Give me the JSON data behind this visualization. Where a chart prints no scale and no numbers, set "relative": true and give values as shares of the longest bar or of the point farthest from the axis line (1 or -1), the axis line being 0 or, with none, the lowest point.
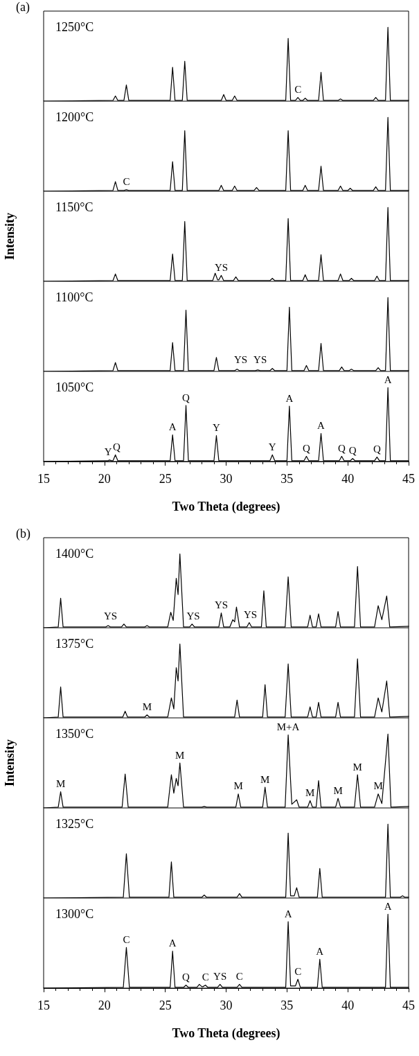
{
  "chart_data": [
    {
      "type": "line",
      "title": "(a)",
      "relative": true,
      "xlim": [
        15,
        45
      ],
      "tick_labels": false,
      "annotations": [
        "1250°C",
        {
          "text": "C",
          "x": 35.9,
          "y": 0.05
        }
      ],
      "x": [
        15,
        20.7,
        20.9,
        21.1,
        21.6,
        21.8,
        22.0,
        25.4,
        25.6,
        25.8,
        26.4,
        26.6,
        26.8,
        29.6,
        29.8,
        30.0,
        30.5,
        30.7,
        30.9,
        34.9,
        35.1,
        35.3,
        35.7,
        35.9,
        36.1,
        36.3,
        36.5,
        36.7,
        37.6,
        37.8,
        38.0,
        39.2,
        39.4,
        39.6,
        42.1,
        42.3,
        42.5,
        43.1,
        43.3,
        43.5,
        45
      ],
      "series": [
        {
          "color": "#000000",
          "values": [
            0,
            0.01,
            0.07,
            0.01,
            0.01,
            0.22,
            0.01,
            0.01,
            0.46,
            0.01,
            0.01,
            0.54,
            0.01,
            0.01,
            0.09,
            0.01,
            0.01,
            0.07,
            0.01,
            0.01,
            0.85,
            0.01,
            0.01,
            0.05,
            0.01,
            0.01,
            0.04,
            0.01,
            0.01,
            0.39,
            0.01,
            0.01,
            0.03,
            0.01,
            0.01,
            0.05,
            0.01,
            0.01,
            1,
            0.01,
            0.01
          ]
        }
      ]
    },
    {
      "type": "line",
      "relative": true,
      "xlim": [
        15,
        45
      ],
      "tick_labels": false,
      "annotations": [
        "1200°C",
        {
          "text": "C",
          "x": 21.8,
          "y": 0.02
        }
      ],
      "x": [
        15,
        20.7,
        20.9,
        21.1,
        21.6,
        21.8,
        22.0,
        25.4,
        25.6,
        25.8,
        26.4,
        26.6,
        26.8,
        29.4,
        29.6,
        29.8,
        30.5,
        30.7,
        30.9,
        32.3,
        32.5,
        32.7,
        34.9,
        35.1,
        35.3,
        36.3,
        36.5,
        36.7,
        37.6,
        37.8,
        38.0,
        39.2,
        39.4,
        39.6,
        40.0,
        40.2,
        40.4,
        42.1,
        42.3,
        42.5,
        43.1,
        43.3,
        43.5,
        45
      ],
      "series": [
        {
          "color": "#000000",
          "values": [
            0,
            0.01,
            0.13,
            0.01,
            0.01,
            0.02,
            0.01,
            0.01,
            0.4,
            0.01,
            0.01,
            0.82,
            0.01,
            0.01,
            0.08,
            0.01,
            0.01,
            0.07,
            0.01,
            0.01,
            0.05,
            0.01,
            0.01,
            0.82,
            0.01,
            0.01,
            0.08,
            0.01,
            0.01,
            0.34,
            0.01,
            0.01,
            0.07,
            0.01,
            0.01,
            0.04,
            0.01,
            0.01,
            0.06,
            0.01,
            0.01,
            1,
            0.01,
            0.01
          ]
        }
      ]
    },
    {
      "type": "line",
      "ylabel": "Intensity",
      "relative": true,
      "xlim": [
        15,
        45
      ],
      "tick_labels": false,
      "annotations": [
        "1150°C",
        {
          "text": "YS",
          "x": 29.6,
          "y": 0.08
        }
      ],
      "x": [
        15,
        20.7,
        20.9,
        21.1,
        25.4,
        25.6,
        25.8,
        26.4,
        26.6,
        26.8,
        28.9,
        29.1,
        29.3,
        29.4,
        29.6,
        29.8,
        30.6,
        30.8,
        31.0,
        33.6,
        33.8,
        34.0,
        34.9,
        35.1,
        35.3,
        36.3,
        36.5,
        36.7,
        37.6,
        37.8,
        38.0,
        39.2,
        39.4,
        39.6,
        40.1,
        40.3,
        40.5,
        42.2,
        42.4,
        42.6,
        43.1,
        43.3,
        43.5,
        45
      ],
      "series": [
        {
          "color": "#000000",
          "values": [
            0,
            0.01,
            0.1,
            0.01,
            0.01,
            0.37,
            0.01,
            0.01,
            0.81,
            0.01,
            0.01,
            0.11,
            0.02,
            0.02,
            0.08,
            0.01,
            0.01,
            0.06,
            0.01,
            0.01,
            0.04,
            0.01,
            0.01,
            0.85,
            0.01,
            0.01,
            0.09,
            0.01,
            0.01,
            0.36,
            0.01,
            0.01,
            0.1,
            0.01,
            0.01,
            0.04,
            0.01,
            0.01,
            0.07,
            0.01,
            0.01,
            1,
            0.01,
            0.01
          ]
        }
      ]
    },
    {
      "type": "line",
      "relative": true,
      "xlim": [
        15,
        45
      ],
      "tick_labels": false,
      "annotations": [
        "1100°C",
        {
          "text": "YS",
          "x": 31.2,
          "y": 0.05
        },
        {
          "text": "YS",
          "x": 32.8,
          "y": 0.05
        }
      ],
      "x": [
        15,
        20.7,
        20.9,
        21.1,
        25.4,
        25.6,
        25.8,
        26.5,
        26.7,
        26.9,
        29.0,
        29.2,
        29.4,
        30.7,
        30.9,
        31.1,
        32.4,
        32.6,
        32.8,
        33.6,
        33.8,
        34.0,
        35.0,
        35.2,
        35.4,
        36.4,
        36.6,
        36.8,
        37.6,
        37.8,
        38.0,
        39.3,
        39.5,
        39.7,
        40.1,
        40.3,
        40.5,
        42.3,
        42.5,
        42.7,
        43.1,
        43.3,
        43.5,
        45
      ],
      "series": [
        {
          "color": "#000000",
          "values": [
            0,
            0.01,
            0.12,
            0.01,
            0.01,
            0.39,
            0.01,
            0.01,
            0.83,
            0.01,
            0.01,
            0.19,
            0.01,
            0.01,
            0.03,
            0.01,
            0.01,
            0.02,
            0.01,
            0.01,
            0.04,
            0.01,
            0.01,
            0.87,
            0.01,
            0.01,
            0.08,
            0.01,
            0.01,
            0.38,
            0.01,
            0.01,
            0.06,
            0.01,
            0.01,
            0.03,
            0.01,
            0.01,
            0.05,
            0.01,
            0.01,
            1,
            0.01,
            0.01
          ]
        }
      ]
    },
    {
      "type": "line",
      "xlabel": "Two Theta (degrees)",
      "relative": true,
      "xlim": [
        15,
        45
      ],
      "xticks": [
        15,
        20,
        25,
        30,
        35,
        40,
        45
      ],
      "tick_labels": "x",
      "annotations": [
        "1050°C",
        {
          "text": "Y",
          "x": 20.3,
          "y": 0.02
        },
        {
          "text": "Q",
          "x": 21.0,
          "y": 0.09
        },
        {
          "text": "A",
          "x": 25.6,
          "y": 0.36
        },
        {
          "text": "Q",
          "x": 26.7,
          "y": 0.76
        },
        {
          "text": "Y",
          "x": 29.2,
          "y": 0.35
        },
        {
          "text": "Y",
          "x": 33.8,
          "y": 0.09
        },
        {
          "text": "A",
          "x": 35.2,
          "y": 0.75
        },
        {
          "text": "Q",
          "x": 36.6,
          "y": 0.07
        },
        {
          "text": "A",
          "x": 37.8,
          "y": 0.38
        },
        {
          "text": "Q",
          "x": 39.5,
          "y": 0.07
        },
        {
          "text": "Q",
          "x": 40.4,
          "y": 0.04
        },
        {
          "text": "Q",
          "x": 42.4,
          "y": 0.06
        },
        {
          "text": "A",
          "x": 43.3,
          "y": 1
        }
      ],
      "x": [
        15,
        20.3,
        20.4,
        20.6,
        20.7,
        20.9,
        21.1,
        25.4,
        25.6,
        25.8,
        26.5,
        26.7,
        26.9,
        29.0,
        29.2,
        29.4,
        33.6,
        33.8,
        34.0,
        35.0,
        35.2,
        35.4,
        36.4,
        36.6,
        36.8,
        37.6,
        37.8,
        38.0,
        39.3,
        39.5,
        39.7,
        40.2,
        40.4,
        40.6,
        42.2,
        42.4,
        42.6,
        43.1,
        43.3,
        43.5,
        45
      ],
      "series": [
        {
          "color": "#000000",
          "values": [
            0,
            0.01,
            0.02,
            0.01,
            0.01,
            0.09,
            0.01,
            0.01,
            0.36,
            0.01,
            0.01,
            0.76,
            0.01,
            0.01,
            0.35,
            0.01,
            0.01,
            0.09,
            0.01,
            0.01,
            0.75,
            0.01,
            0.01,
            0.07,
            0.01,
            0.01,
            0.38,
            0.01,
            0.01,
            0.07,
            0.01,
            0.01,
            0.04,
            0.01,
            0.01,
            0.06,
            0.01,
            0.01,
            1,
            0.01,
            0.01
          ]
        }
      ]
    },
    {
      "type": "line",
      "title": "(b)",
      "relative": true,
      "xlim": [
        15,
        45
      ],
      "tick_labels": false,
      "annotations": [
        "1400°C",
        {
          "text": "YS",
          "x": 20.5,
          "y": 0.05
        },
        {
          "text": "YS",
          "x": 27.3,
          "y": 0.05
        },
        {
          "text": "YS",
          "x": 29.6,
          "y": 0.2
        },
        {
          "text": "YS",
          "x": 32.0,
          "y": 0.07
        }
      ],
      "x": [
        15,
        16.2,
        16.4,
        16.6,
        20.1,
        20.3,
        20.5,
        21.4,
        21.6,
        21.8,
        23.3,
        23.5,
        23.7,
        25.2,
        25.45,
        25.65,
        25.9,
        26.05,
        26.2,
        26.5,
        27.0,
        27.2,
        27.4,
        29.4,
        29.6,
        29.8,
        30.3,
        30.55,
        30.7,
        30.85,
        31.1,
        31.7,
        31.9,
        32.1,
        32.9,
        33.1,
        33.3,
        34.85,
        35.1,
        35.35,
        36.7,
        36.9,
        37.1,
        37.4,
        37.6,
        37.8,
        39.0,
        39.2,
        39.4,
        40.55,
        40.8,
        41.05,
        42.2,
        42.5,
        42.8,
        43.2,
        43.45,
        45
      ],
      "series": [
        {
          "color": "#000000",
          "values": [
            0,
            0.01,
            0.4,
            0.01,
            0.01,
            0.03,
            0.01,
            0.01,
            0.05,
            0.01,
            0.01,
            0.03,
            0.01,
            0.01,
            0.21,
            0.1,
            0.67,
            0.45,
            1,
            0.01,
            0.01,
            0.05,
            0.01,
            0.01,
            0.2,
            0.01,
            0.01,
            0.11,
            0.08,
            0.28,
            0.01,
            0.01,
            0.07,
            0.01,
            0.01,
            0.5,
            0.01,
            0.01,
            0.69,
            0.01,
            0.01,
            0.17,
            0.01,
            0.01,
            0.19,
            0.01,
            0.01,
            0.22,
            0.01,
            0.01,
            0.83,
            0.01,
            0.01,
            0.3,
            0.11,
            0.43,
            0.01,
            0.02
          ]
        }
      ]
    },
    {
      "type": "line",
      "relative": true,
      "xlim": [
        15,
        45
      ],
      "tick_labels": false,
      "annotations": [
        "1375°C",
        {
          "text": "M",
          "x": 23.5,
          "y": 0.04
        }
      ],
      "x": [
        15,
        16.2,
        16.4,
        16.6,
        21.5,
        21.7,
        21.9,
        23.3,
        23.5,
        23.7,
        25.2,
        25.5,
        25.7,
        25.9,
        26.05,
        26.2,
        26.5,
        30.7,
        30.9,
        31.1,
        33.0,
        33.2,
        33.4,
        34.85,
        35.1,
        35.35,
        36.7,
        36.9,
        37.1,
        37.4,
        37.6,
        37.8,
        39.0,
        39.2,
        39.4,
        40.55,
        40.8,
        41.05,
        42.2,
        42.5,
        42.8,
        43.2,
        43.45,
        45
      ],
      "series": [
        {
          "color": "#000000",
          "values": [
            0,
            0.01,
            0.42,
            0.01,
            0.01,
            0.09,
            0.01,
            0.01,
            0.04,
            0.01,
            0.01,
            0.27,
            0.12,
            0.68,
            0.5,
            1,
            0.01,
            0.01,
            0.24,
            0.01,
            0.01,
            0.45,
            0.01,
            0.01,
            0.73,
            0.01,
            0.01,
            0.15,
            0.01,
            0.01,
            0.21,
            0.01,
            0.01,
            0.21,
            0.01,
            0.01,
            0.8,
            0.01,
            0.01,
            0.27,
            0.08,
            0.5,
            0.01,
            0.02
          ]
        }
      ]
    },
    {
      "type": "line",
      "ylabel": "Intensity",
      "relative": true,
      "xlim": [
        15,
        45
      ],
      "tick_labels": false,
      "annotations": [
        "1350°C",
        {
          "text": "M",
          "x": 16.4,
          "y": 0.22
        },
        {
          "text": "M",
          "x": 26.2,
          "y": 0.61
        },
        {
          "text": "M",
          "x": 31.0,
          "y": 0.19
        },
        {
          "text": "M",
          "x": 33.2,
          "y": 0.28
        },
        {
          "text": "M+A",
          "x": 35.1,
          "y": 0.99
        },
        {
          "text": "M",
          "x": 36.9,
          "y": 0.1
        },
        {
          "text": "M",
          "x": 39.2,
          "y": 0.13
        },
        {
          "text": "M",
          "x": 40.8,
          "y": 0.45
        },
        {
          "text": "M",
          "x": 42.5,
          "y": 0.19
        }
      ],
      "x": [
        15,
        16.2,
        16.4,
        16.6,
        21.45,
        21.7,
        21.95,
        25.2,
        25.5,
        25.7,
        25.9,
        26.05,
        26.2,
        26.5,
        28.0,
        28.2,
        28.4,
        30.8,
        31.0,
        31.2,
        33.0,
        33.2,
        33.4,
        34.85,
        35.1,
        35.4,
        35.8,
        36.0,
        36.7,
        36.9,
        37.1,
        37.4,
        37.6,
        37.8,
        39.0,
        39.2,
        39.4,
        40.55,
        40.8,
        41.05,
        42.2,
        42.5,
        42.8,
        43.3,
        43.55,
        45
      ],
      "series": [
        {
          "color": "#000000",
          "values": [
            0,
            0.01,
            0.22,
            0.01,
            0.01,
            0.46,
            0.01,
            0.01,
            0.45,
            0.2,
            0.4,
            0.3,
            0.61,
            0.01,
            0.01,
            0.02,
            0.01,
            0.01,
            0.19,
            0.01,
            0.01,
            0.28,
            0.01,
            0.01,
            0.99,
            0.05,
            0.11,
            0.01,
            0.01,
            0.1,
            0.01,
            0.01,
            0.37,
            0.01,
            0.01,
            0.13,
            0.01,
            0.01,
            0.45,
            0.01,
            0.01,
            0.19,
            0.06,
            1,
            0.01,
            0.02
          ]
        }
      ]
    },
    {
      "type": "line",
      "relative": true,
      "xlim": [
        15,
        45
      ],
      "tick_labels": false,
      "annotations": [
        "1325°C"
      ],
      "x": [
        15,
        21.55,
        21.8,
        22.05,
        25.3,
        25.5,
        25.7,
        28.0,
        28.2,
        28.4,
        30.9,
        31.1,
        31.3,
        34.9,
        35.1,
        35.3,
        35.6,
        35.8,
        36.0,
        37.5,
        37.7,
        37.9,
        43.1,
        43.3,
        43.5,
        44.3,
        44.5,
        44.7,
        45
      ],
      "series": [
        {
          "color": "#000000",
          "values": [
            0,
            0.01,
            0.6,
            0.01,
            0.01,
            0.49,
            0.01,
            0.01,
            0.04,
            0.01,
            0.01,
            0.06,
            0.01,
            0.01,
            0.88,
            0.03,
            0.03,
            0.14,
            0.01,
            0.01,
            0.4,
            0.01,
            0.01,
            1,
            0.01,
            0.01,
            0.03,
            0.01,
            0.01
          ]
        }
      ]
    },
    {
      "type": "line",
      "xlabel": "Two Theta (degrees)",
      "relative": true,
      "xlim": [
        15,
        45
      ],
      "xticks": [
        15,
        20,
        25,
        30,
        35,
        40,
        45
      ],
      "tick_labels": "x",
      "annotations": [
        "1300°C",
        {
          "text": "C",
          "x": 21.8,
          "y": 0.55
        },
        {
          "text": "A",
          "x": 25.6,
          "y": 0.5
        },
        {
          "text": "Q",
          "x": 26.7,
          "y": 0.04
        },
        {
          "text": "C",
          "x": 28.3,
          "y": 0.04
        },
        {
          "text": "YS",
          "x": 29.5,
          "y": 0.05
        },
        {
          "text": "C",
          "x": 31.1,
          "y": 0.05
        },
        {
          "text": "A",
          "x": 35.1,
          "y": 0.9
        },
        {
          "text": "C",
          "x": 35.9,
          "y": 0.12
        },
        {
          "text": "A",
          "x": 37.7,
          "y": 0.39
        },
        {
          "text": "A",
          "x": 43.3,
          "y": 1
        }
      ],
      "x": [
        15,
        21.55,
        21.8,
        22.05,
        25.4,
        25.6,
        25.8,
        26.5,
        26.7,
        26.9,
        27.6,
        27.8,
        28.0,
        28.1,
        28.3,
        28.5,
        29.3,
        29.5,
        29.7,
        30.9,
        31.1,
        31.3,
        34.9,
        35.1,
        35.3,
        35.7,
        35.9,
        36.1,
        37.5,
        37.7,
        37.9,
        43.1,
        43.3,
        43.5,
        45
      ],
      "series": [
        {
          "color": "#000000",
          "values": [
            0,
            0.01,
            0.55,
            0.01,
            0.01,
            0.5,
            0.01,
            0.01,
            0.04,
            0.01,
            0.01,
            0.05,
            0.02,
            0.02,
            0.04,
            0.01,
            0.01,
            0.05,
            0.01,
            0.01,
            0.05,
            0.01,
            0.01,
            0.9,
            0.03,
            0.03,
            0.12,
            0.01,
            0.01,
            0.39,
            0.01,
            0.01,
            1,
            0.01,
            0.01
          ]
        }
      ]
    }
  ]
}
